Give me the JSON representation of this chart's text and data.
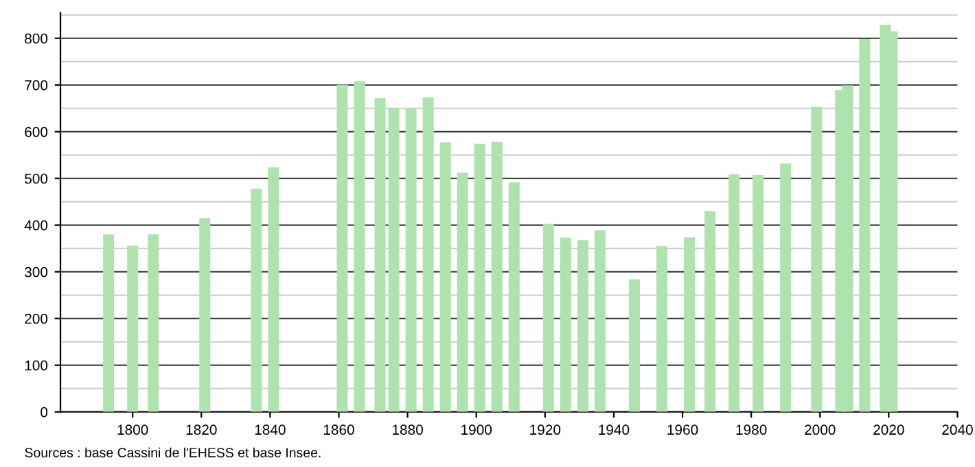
{
  "chart_data": {
    "type": "bar",
    "x": [
      1793,
      1800,
      1806,
      1821,
      1836,
      1841,
      1861,
      1866,
      1872,
      1876,
      1881,
      1886,
      1891,
      1896,
      1901,
      1906,
      1911,
      1921,
      1926,
      1931,
      1936,
      1946,
      1954,
      1962,
      1968,
      1975,
      1982,
      1990,
      1999,
      2006,
      2008,
      2013,
      2019,
      2021
    ],
    "values": [
      380,
      356,
      380,
      415,
      478,
      524,
      700,
      708,
      672,
      650,
      650,
      674,
      577,
      512,
      574,
      578,
      492,
      403,
      373,
      368,
      389,
      284,
      355,
      374,
      430,
      509,
      507,
      532,
      653,
      689,
      699,
      798,
      829,
      815
    ],
    "color": "#aee3ae",
    "xlim": [
      1779,
      2040
    ],
    "xticks": [
      1800,
      1820,
      1840,
      1860,
      1880,
      1900,
      1920,
      1940,
      1960,
      1980,
      2000,
      2020,
      2040
    ],
    "ylim": [
      0,
      855
    ],
    "yticks": [
      0,
      100,
      200,
      300,
      400,
      500,
      600,
      700,
      800
    ],
    "grid": "y",
    "annotations": [
      "Sources : base Cassini de l'EHESS et base Insee."
    ]
  }
}
